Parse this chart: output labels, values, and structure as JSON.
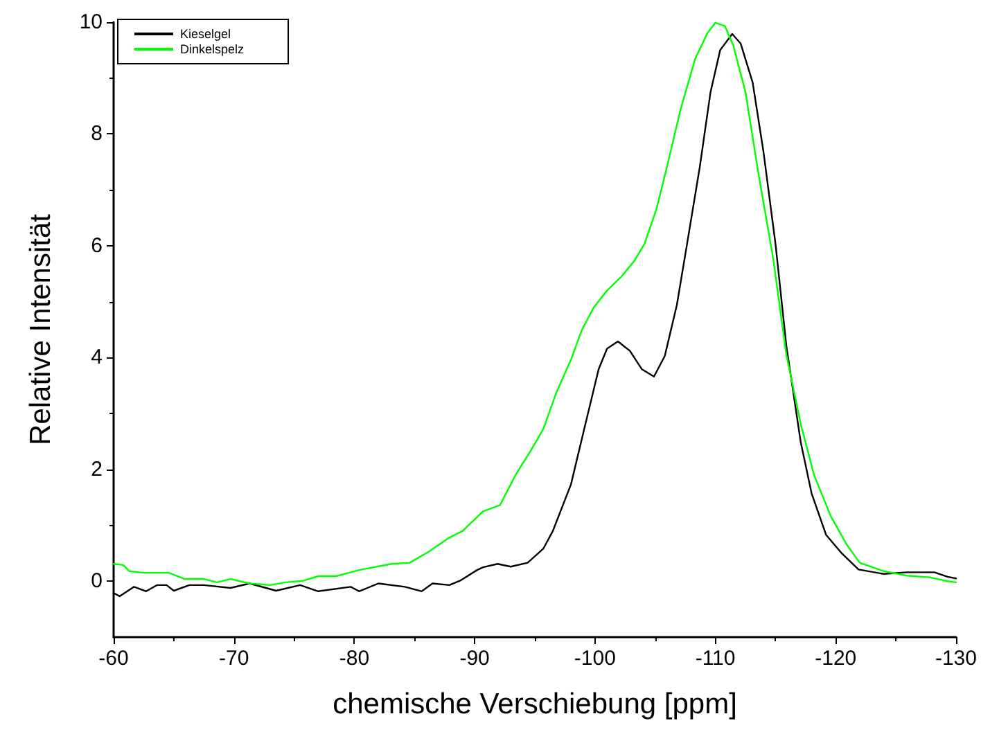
{
  "chart_data": {
    "type": "line",
    "xlabel": "chemische Verschiebung [ppm]",
    "ylabel": "Relative Intensität",
    "xlim": [
      -60,
      -130
    ],
    "xticks": [
      -60,
      -70,
      -80,
      -90,
      -100,
      -110,
      -120,
      -130
    ],
    "ylim": [
      -1,
      10
    ],
    "yticks": [
      0,
      2,
      4,
      6,
      8,
      10
    ],
    "grid": false,
    "legend": "top left",
    "marker": "none",
    "line_style": "solid",
    "series": [
      {
        "name": "Kieselgel",
        "color": "#000000",
        "x": [
          -60,
          -60.5,
          -61.7,
          -62.7,
          -63.6,
          -64.4,
          -65,
          -66.3,
          -67.5,
          -69.7,
          -71.3,
          -73.5,
          -75.5,
          -77,
          -79.7,
          -80.4,
          -82,
          -84.2,
          -85.6,
          -86.5,
          -87.9,
          -88.8,
          -90.2,
          -90.7,
          -91.9,
          -93,
          -94.4,
          -95.7,
          -96.5,
          -98,
          -99.1,
          -100.3,
          -101,
          -101.9,
          -102.9,
          -103.9,
          -104.9,
          -105.8,
          -106.8,
          -107.7,
          -108.7,
          -109.6,
          -110.4,
          -111.4,
          -112.1,
          -113.1,
          -114,
          -115,
          -115.9,
          -117.1,
          -118,
          -119.2,
          -120.5,
          -121.9,
          -124,
          -125.9,
          -128.2,
          -129.3,
          -130
        ],
        "values": [
          -0.21,
          -0.27,
          -0.1,
          -0.18,
          -0.07,
          -0.07,
          -0.17,
          -0.07,
          -0.07,
          -0.12,
          -0.04,
          -0.17,
          -0.07,
          -0.18,
          -0.1,
          -0.18,
          -0.04,
          -0.1,
          -0.18,
          -0.04,
          -0.07,
          0.01,
          0.2,
          0.25,
          0.31,
          0.26,
          0.33,
          0.58,
          0.9,
          1.73,
          2.72,
          3.79,
          4.16,
          4.29,
          4.12,
          3.79,
          3.66,
          4.03,
          4.94,
          6.1,
          7.4,
          8.75,
          9.5,
          9.79,
          9.62,
          8.92,
          7.68,
          6.03,
          4.21,
          2.48,
          1.57,
          0.83,
          0.5,
          0.21,
          0.13,
          0.16,
          0.16,
          0.08,
          0.05
        ]
      },
      {
        "name": "Dinkelspelz",
        "color": "#00ff00",
        "x": [
          -60,
          -60.8,
          -61.3,
          -62.5,
          -64.6,
          -65.9,
          -67.5,
          -68.6,
          -69.7,
          -71.3,
          -73,
          -74.3,
          -75.8,
          -77,
          -78.5,
          -80.4,
          -83.1,
          -84.6,
          -86.2,
          -87.9,
          -89,
          -90.7,
          -92.1,
          -93.4,
          -94.7,
          -95.7,
          -96.8,
          -98,
          -98.9,
          -99.9,
          -101,
          -102.2,
          -103.3,
          -104.1,
          -105.1,
          -106,
          -107.1,
          -108.3,
          -109.3,
          -110,
          -110.8,
          -111.5,
          -112.5,
          -113.6,
          -114.8,
          -115.9,
          -117.1,
          -118.2,
          -119.6,
          -120.9,
          -122,
          -124,
          -125.9,
          -127.8,
          -129.3,
          -130
        ],
        "values": [
          0.31,
          0.29,
          0.18,
          0.15,
          0.15,
          0.04,
          0.04,
          -0.02,
          0.04,
          -0.04,
          -0.07,
          -0.02,
          0.01,
          0.09,
          0.09,
          0.2,
          0.31,
          0.33,
          0.53,
          0.78,
          0.9,
          1.25,
          1.36,
          1.9,
          2.35,
          2.72,
          3.38,
          3.96,
          4.49,
          4.9,
          5.2,
          5.45,
          5.74,
          6.03,
          6.65,
          7.43,
          8.43,
          9.33,
          9.79,
          9.99,
          9.93,
          9.58,
          8.75,
          7.27,
          5.78,
          4.05,
          2.81,
          1.9,
          1.16,
          0.66,
          0.33,
          0.18,
          0.1,
          0.07,
          0,
          -0.02
        ]
      }
    ]
  }
}
